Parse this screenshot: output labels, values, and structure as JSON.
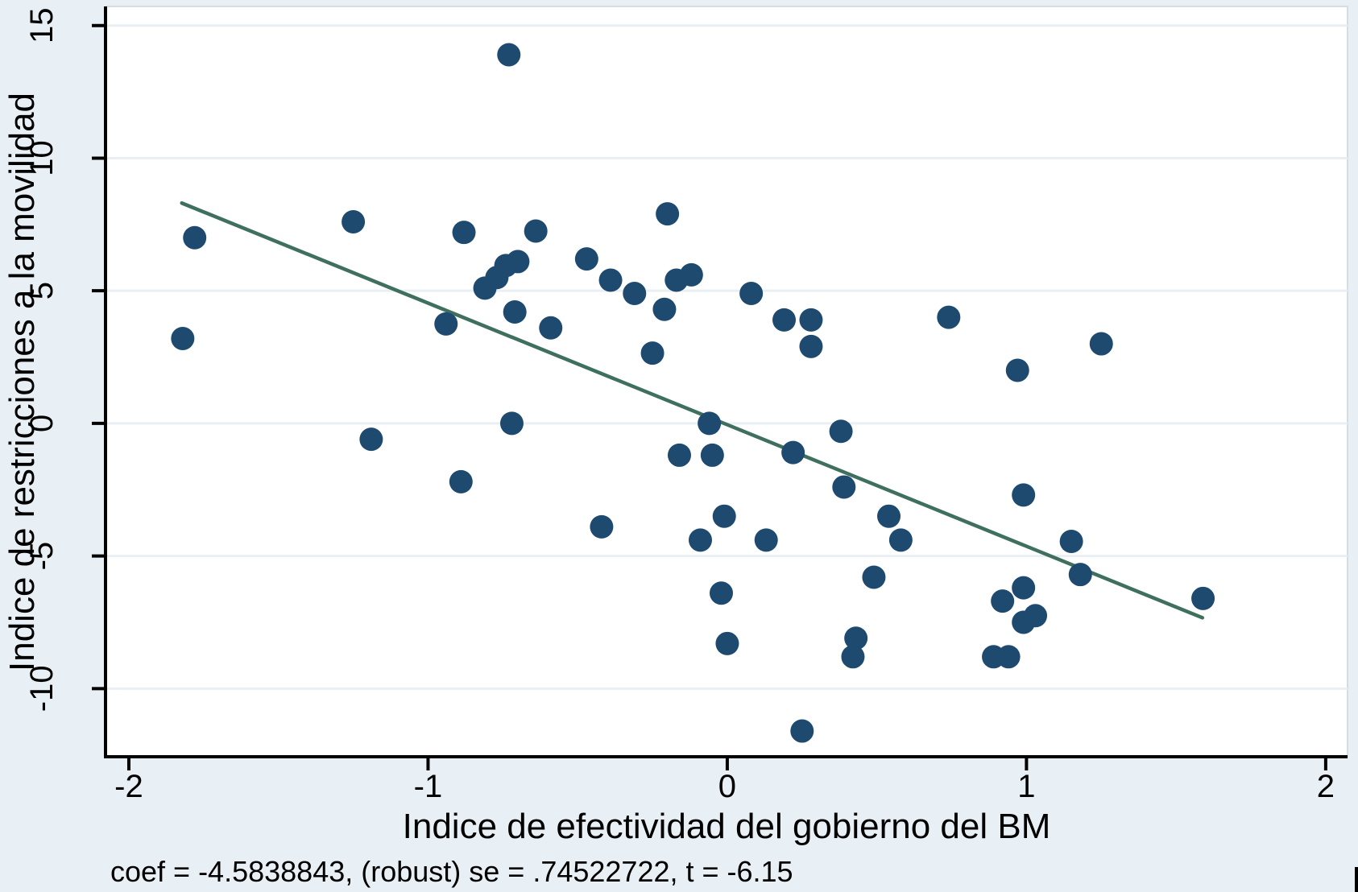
{
  "chart_data": {
    "type": "scatter",
    "title": "",
    "xlabel": "Indice de efectividad del gobierno del BM",
    "ylabel": "Indice de restricciones a la movilidad",
    "caption": "coef = -4.5838843, (robust) se = .74522722, t = -6.15",
    "stats": {
      "coef": "-4.5838843",
      "robust_se": ".74522722",
      "t": "-6.15"
    },
    "xticks": [
      -2,
      -1,
      0,
      1,
      2
    ],
    "yticks": [
      -10,
      -5,
      0,
      5,
      10,
      15
    ],
    "xlim": [
      -2.078,
      2.073
    ],
    "ylim": [
      -12.57,
      15.72
    ],
    "grid": "horizontal",
    "legend": "none",
    "points": [
      [
        -1.82,
        3.2
      ],
      [
        -1.78,
        7.0
      ],
      [
        -1.25,
        7.6
      ],
      [
        -1.19,
        -0.6
      ],
      [
        -0.94,
        3.75
      ],
      [
        -0.89,
        -2.2
      ],
      [
        -0.88,
        7.2
      ],
      [
        -0.81,
        5.1
      ],
      [
        -0.77,
        5.5
      ],
      [
        -0.74,
        5.95
      ],
      [
        -0.7,
        6.1
      ],
      [
        -0.73,
        13.9
      ],
      [
        -0.72,
        0.0
      ],
      [
        -0.71,
        4.2
      ],
      [
        -0.64,
        7.25
      ],
      [
        -0.59,
        3.6
      ],
      [
        -0.47,
        6.2
      ],
      [
        -0.42,
        -3.9
      ],
      [
        -0.39,
        5.4
      ],
      [
        -0.31,
        4.9
      ],
      [
        -0.25,
        2.65
      ],
      [
        -0.21,
        4.3
      ],
      [
        -0.2,
        7.9
      ],
      [
        -0.17,
        5.4
      ],
      [
        -0.16,
        -1.2
      ],
      [
        -0.12,
        5.6
      ],
      [
        -0.09,
        -4.4
      ],
      [
        -0.06,
        0.0
      ],
      [
        -0.05,
        -1.2
      ],
      [
        -0.02,
        -6.4
      ],
      [
        -0.01,
        -3.5
      ],
      [
        0.0,
        -8.3
      ],
      [
        0.08,
        4.9
      ],
      [
        0.13,
        -4.4
      ],
      [
        0.19,
        3.9
      ],
      [
        0.22,
        -1.1
      ],
      [
        0.25,
        -11.6
      ],
      [
        0.28,
        3.9
      ],
      [
        0.28,
        2.9
      ],
      [
        0.38,
        -0.3
      ],
      [
        0.39,
        -2.4
      ],
      [
        0.43,
        -8.1
      ],
      [
        0.42,
        -8.8
      ],
      [
        0.49,
        -5.8
      ],
      [
        0.54,
        -3.5
      ],
      [
        0.58,
        -4.4
      ],
      [
        0.74,
        4.0
      ],
      [
        0.89,
        -8.8
      ],
      [
        0.92,
        -6.7
      ],
      [
        0.94,
        -8.8
      ],
      [
        0.97,
        2.0
      ],
      [
        0.99,
        -2.7
      ],
      [
        0.99,
        -6.2
      ],
      [
        0.99,
        -7.5
      ],
      [
        1.03,
        -7.25
      ],
      [
        1.15,
        -4.45
      ],
      [
        1.18,
        -5.7
      ],
      [
        1.25,
        3.0
      ],
      [
        1.59,
        -6.6
      ]
    ],
    "fit_line": {
      "slope": -4.5838843,
      "intercept": -0.05,
      "x_start": -1.823,
      "x_end": 1.588
    },
    "colors": {
      "marker": "#1d4a6e",
      "fit_line": "#3f705e",
      "background": "#e9f0f5",
      "plot_background": "#ffffff",
      "gridline": "#e9eff4",
      "plot_border": "#d3dde3",
      "axis": "#000000",
      "text": "#000000"
    }
  }
}
